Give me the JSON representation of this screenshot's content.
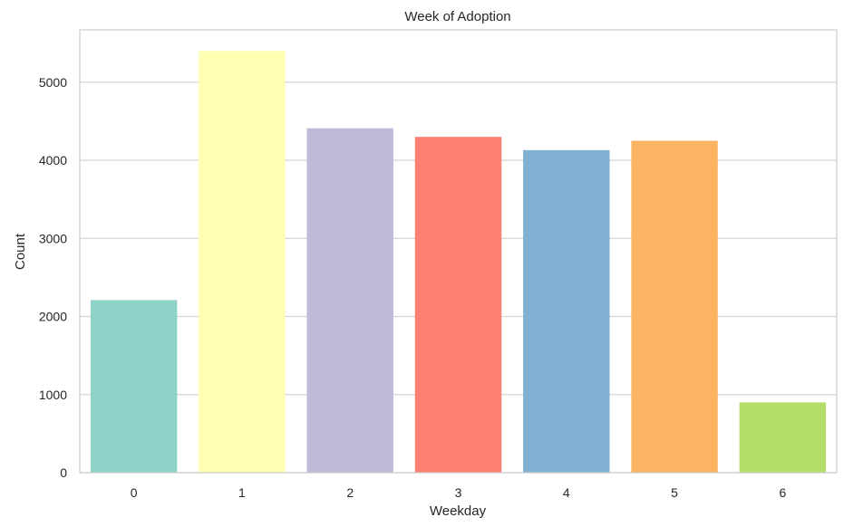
{
  "chart_data": {
    "type": "bar",
    "title": "Week of Adoption",
    "xlabel": "Weekday",
    "ylabel": "Count",
    "categories": [
      "0",
      "1",
      "2",
      "3",
      "4",
      "5",
      "6"
    ],
    "values": [
      2210,
      5400,
      4410,
      4300,
      4130,
      4250,
      900
    ],
    "colors": [
      "#8dd3c7",
      "#ffffb3",
      "#bebada",
      "#fb8072",
      "#80b1d3",
      "#fdb462",
      "#b3de69"
    ],
    "ylim": [
      0,
      5670
    ],
    "yticks": [
      "0",
      "1000",
      "2000",
      "3000",
      "4000",
      "5000"
    ],
    "grid": true,
    "legend": "none"
  }
}
